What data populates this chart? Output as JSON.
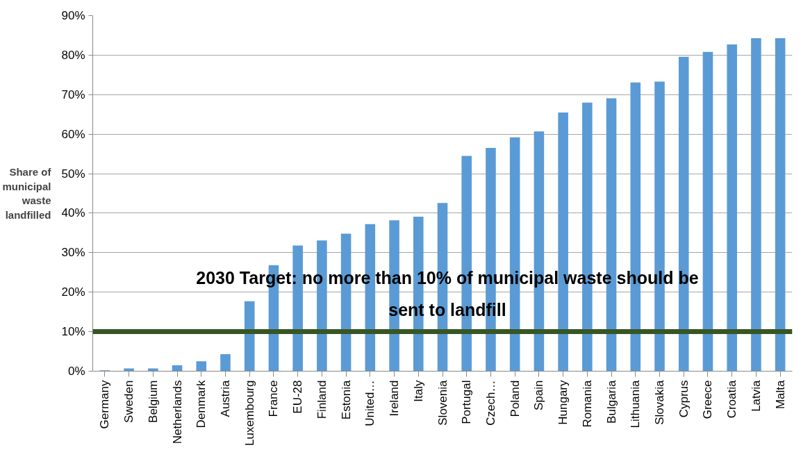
{
  "chart_data": {
    "type": "bar",
    "ylabel": "Share of municipal waste landfilled",
    "categories": [
      "Germany",
      "Sweden",
      "Belgium",
      "Netherlands",
      "Denmark",
      "Austria",
      "Luxembourg",
      "France",
      "EU-28",
      "Finland",
      "Estonia",
      "United…",
      "Ireland",
      "Italy",
      "Slovenia",
      "Portugal",
      "Czech…",
      "Poland",
      "Spain",
      "Hungary",
      "Romania",
      "Bulgaria",
      "Lithuania",
      "Slovakia",
      "Cyprus",
      "Greece",
      "Croatia",
      "Latvia",
      "Malta"
    ],
    "values": [
      0.2,
      0.7,
      0.7,
      1.5,
      2.5,
      4.3,
      17.7,
      26.8,
      31.8,
      33.1,
      34.8,
      37.2,
      38.2,
      39.1,
      42.6,
      54.5,
      56.5,
      59.2,
      60.7,
      65.5,
      68.0,
      69.1,
      73.1,
      73.3,
      79.6,
      80.8,
      82.7,
      84.3,
      84.3
    ],
    "color": "#5b9bd5",
    "ylim": [
      0,
      90
    ],
    "yticks": [
      {
        "value": 0,
        "label": "0%"
      },
      {
        "value": 10,
        "label": "10%"
      },
      {
        "value": 20,
        "label": "20%"
      },
      {
        "value": 30,
        "label": "30%"
      },
      {
        "value": 40,
        "label": "40%"
      },
      {
        "value": 50,
        "label": "50%"
      },
      {
        "value": 60,
        "label": "60%"
      },
      {
        "value": 70,
        "label": "70%"
      },
      {
        "value": 80,
        "label": "80%"
      },
      {
        "value": 90,
        "label": "90%"
      }
    ],
    "grid": "y",
    "ref_lines": [
      {
        "axis": "y",
        "value": 10,
        "label": "2030 Target: no more than 10% of municipal waste should be sent to landfill",
        "color": "#375623",
        "line_style": "solid"
      }
    ]
  }
}
